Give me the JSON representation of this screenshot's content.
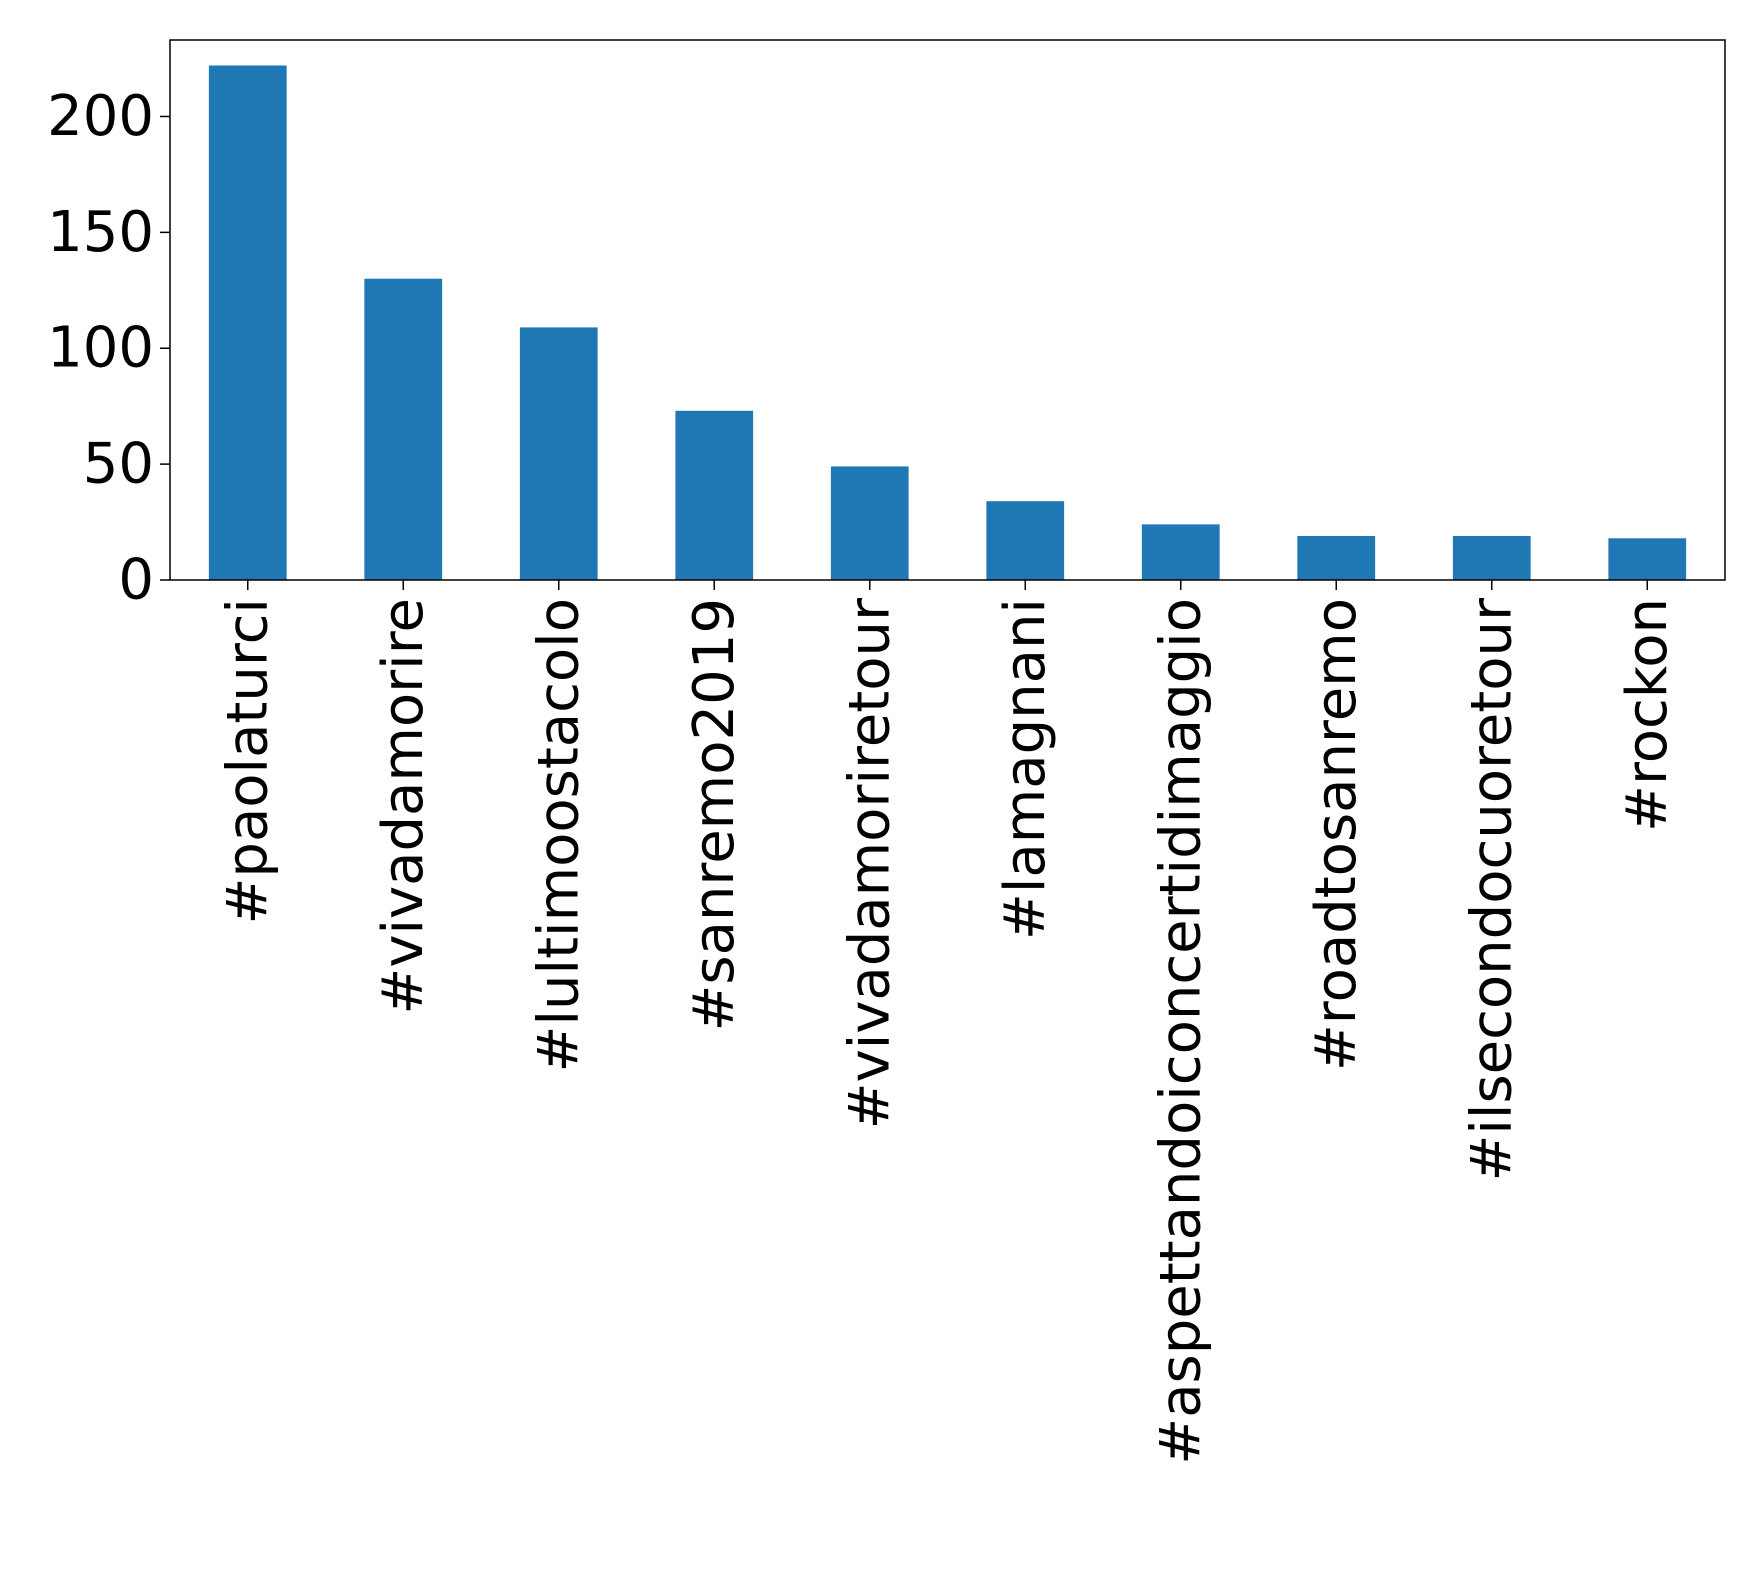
{
  "chart_data": {
    "type": "bar",
    "title": "",
    "xlabel": "",
    "ylabel": "",
    "categories": [
      "#paolaturci",
      "#vivadamorire",
      "#lultimoostacolo",
      "#sanremo2019",
      "#vivadamoriretour",
      "#lamagnani",
      "#aspettandoiconcertidimaggio",
      "#roadtosanremo",
      "#ilsecondocuoretour",
      "#rockon"
    ],
    "values": [
      222,
      130,
      109,
      73,
      49,
      34,
      24,
      19,
      19,
      18
    ],
    "ylim": [
      0,
      233
    ],
    "yticks": [
      0,
      50,
      100,
      150,
      200
    ],
    "ytick_labels": [
      "0",
      "50",
      "100",
      "150",
      "200"
    ],
    "bar_color": "#1f77b4",
    "grid": false,
    "legend": "none"
  }
}
